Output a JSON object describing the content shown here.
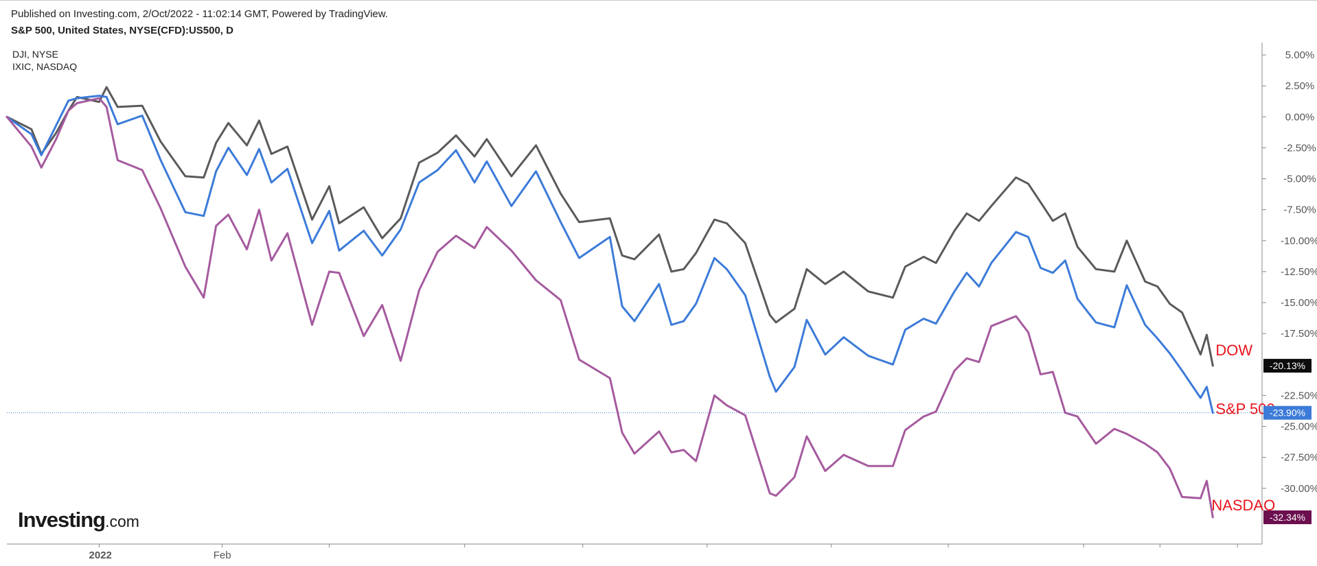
{
  "header": {
    "published": "Published on Investing.com, 2/Oct/2022 - 11:02:14 GMT, Powered by TradingView.",
    "symbol": "S&P 500, United States, NYSE(CFD):US500, D",
    "compare": [
      "DJI, NYSE",
      "IXIC, NASDAQ"
    ]
  },
  "logo": {
    "main": "Investing",
    "suffix": ".com"
  },
  "chart_data": {
    "type": "line",
    "y_unit": "%",
    "ylim": [
      -34.5,
      6.0
    ],
    "y_ticks": [
      5,
      2.5,
      0,
      -2.5,
      -5,
      -7.5,
      -10,
      -12.5,
      -15,
      -17.5,
      -22.5,
      -25,
      -27.5,
      -30
    ],
    "y_tick_labels": [
      "5.00%",
      "2.50%",
      "0.00%",
      "-2.50%",
      "-5.00%",
      "-7.50%",
      "-10.00%",
      "-12.50%",
      "-15.00%",
      "-17.50%",
      "-22.50%",
      "-25.00%",
      "-27.50%",
      "-30.00%"
    ],
    "x_labels": [
      {
        "label": "2022",
        "bold": true,
        "x": 0.076
      },
      {
        "label": "Feb",
        "bold": false,
        "x": 0.175
      }
    ],
    "x_range": [
      0,
      1.02
    ],
    "grid": false,
    "series": [
      {
        "name": "DOW",
        "color": "#5a5a5a",
        "label_color": "#e8141c",
        "last_value": "-20.13%",
        "badge_color": "#0c0c0c",
        "points": [
          [
            0,
            0
          ],
          [
            0.02,
            -1
          ],
          [
            0.028,
            -3
          ],
          [
            0.04,
            -1.3
          ],
          [
            0.05,
            0.5
          ],
          [
            0.057,
            1.6
          ],
          [
            0.075,
            1.2
          ],
          [
            0.081,
            2.4
          ],
          [
            0.09,
            0.8
          ],
          [
            0.11,
            0.9
          ],
          [
            0.125,
            -2
          ],
          [
            0.145,
            -4.8
          ],
          [
            0.16,
            -4.9
          ],
          [
            0.17,
            -2.1
          ],
          [
            0.18,
            -0.5
          ],
          [
            0.195,
            -2.3
          ],
          [
            0.205,
            -0.3
          ],
          [
            0.215,
            -3
          ],
          [
            0.228,
            -2.4
          ],
          [
            0.248,
            -8.3
          ],
          [
            0.262,
            -5.6
          ],
          [
            0.27,
            -8.6
          ],
          [
            0.29,
            -7.3
          ],
          [
            0.305,
            -9.8
          ],
          [
            0.32,
            -8.2
          ],
          [
            0.335,
            -3.7
          ],
          [
            0.35,
            -2.9
          ],
          [
            0.365,
            -1.5
          ],
          [
            0.38,
            -3.2
          ],
          [
            0.39,
            -1.8
          ],
          [
            0.41,
            -4.8
          ],
          [
            0.43,
            -2.3
          ],
          [
            0.45,
            -6.2
          ],
          [
            0.465,
            -8.5
          ],
          [
            0.49,
            -8.2
          ],
          [
            0.5,
            -11.2
          ],
          [
            0.51,
            -11.5
          ],
          [
            0.53,
            -9.5
          ],
          [
            0.54,
            -12.5
          ],
          [
            0.55,
            -12.3
          ],
          [
            0.56,
            -11
          ],
          [
            0.575,
            -8.3
          ],
          [
            0.585,
            -8.6
          ],
          [
            0.6,
            -10.2
          ],
          [
            0.62,
            -16
          ],
          [
            0.625,
            -16.6
          ],
          [
            0.64,
            -15.5
          ],
          [
            0.65,
            -12.3
          ],
          [
            0.665,
            -13.5
          ],
          [
            0.68,
            -12.5
          ],
          [
            0.7,
            -14.1
          ],
          [
            0.72,
            -14.6
          ],
          [
            0.73,
            -12.1
          ],
          [
            0.745,
            -11.3
          ],
          [
            0.755,
            -11.8
          ],
          [
            0.77,
            -9.2
          ],
          [
            0.78,
            -7.8
          ],
          [
            0.79,
            -8.4
          ],
          [
            0.8,
            -7.2
          ],
          [
            0.82,
            -4.9
          ],
          [
            0.83,
            -5.4
          ],
          [
            0.84,
            -6.9
          ],
          [
            0.85,
            -8.4
          ],
          [
            0.86,
            -7.8
          ],
          [
            0.87,
            -10.5
          ],
          [
            0.885,
            -12.3
          ],
          [
            0.9,
            -12.5
          ],
          [
            0.91,
            -10
          ],
          [
            0.925,
            -13.3
          ],
          [
            0.935,
            -13.7
          ],
          [
            0.945,
            -15.1
          ],
          [
            0.955,
            -15.8
          ],
          [
            0.97,
            -19.2
          ],
          [
            0.975,
            -17.6
          ],
          [
            0.98,
            -20.1
          ]
        ]
      },
      {
        "name": "S&P 500",
        "color": "#3c7bd8",
        "label_color": "#e8141c",
        "last_value": "-23.90%",
        "badge_color": "#3c7bd8",
        "points": [
          [
            0,
            0
          ],
          [
            0.02,
            -1.4
          ],
          [
            0.028,
            -3.1
          ],
          [
            0.04,
            -0.7
          ],
          [
            0.05,
            1.3
          ],
          [
            0.057,
            1.5
          ],
          [
            0.075,
            1.7
          ],
          [
            0.081,
            1.6
          ],
          [
            0.09,
            -0.6
          ],
          [
            0.11,
            0.1
          ],
          [
            0.125,
            -3.5
          ],
          [
            0.145,
            -7.7
          ],
          [
            0.16,
            -8
          ],
          [
            0.17,
            -4.4
          ],
          [
            0.18,
            -2.5
          ],
          [
            0.195,
            -4.7
          ],
          [
            0.205,
            -2.6
          ],
          [
            0.215,
            -5.3
          ],
          [
            0.228,
            -4.2
          ],
          [
            0.248,
            -10.2
          ],
          [
            0.262,
            -7.6
          ],
          [
            0.27,
            -10.8
          ],
          [
            0.29,
            -9.2
          ],
          [
            0.305,
            -11.2
          ],
          [
            0.32,
            -9.1
          ],
          [
            0.335,
            -5.3
          ],
          [
            0.35,
            -4.3
          ],
          [
            0.365,
            -2.7
          ],
          [
            0.38,
            -5.3
          ],
          [
            0.39,
            -3.6
          ],
          [
            0.41,
            -7.2
          ],
          [
            0.43,
            -4.4
          ],
          [
            0.45,
            -8.5
          ],
          [
            0.465,
            -11.4
          ],
          [
            0.49,
            -9.7
          ],
          [
            0.5,
            -15.3
          ],
          [
            0.51,
            -16.5
          ],
          [
            0.53,
            -13.5
          ],
          [
            0.54,
            -16.8
          ],
          [
            0.55,
            -16.5
          ],
          [
            0.56,
            -15.1
          ],
          [
            0.575,
            -11.4
          ],
          [
            0.585,
            -12.3
          ],
          [
            0.6,
            -14.4
          ],
          [
            0.62,
            -21
          ],
          [
            0.625,
            -22.2
          ],
          [
            0.64,
            -20.2
          ],
          [
            0.65,
            -16.4
          ],
          [
            0.665,
            -19.2
          ],
          [
            0.68,
            -17.8
          ],
          [
            0.7,
            -19.3
          ],
          [
            0.72,
            -20
          ],
          [
            0.73,
            -17.2
          ],
          [
            0.745,
            -16.3
          ],
          [
            0.755,
            -16.7
          ],
          [
            0.77,
            -14.1
          ],
          [
            0.78,
            -12.6
          ],
          [
            0.79,
            -13.7
          ],
          [
            0.8,
            -11.8
          ],
          [
            0.82,
            -9.3
          ],
          [
            0.83,
            -9.7
          ],
          [
            0.84,
            -12.2
          ],
          [
            0.85,
            -12.6
          ],
          [
            0.86,
            -11.6
          ],
          [
            0.87,
            -14.7
          ],
          [
            0.885,
            -16.6
          ],
          [
            0.9,
            -17
          ],
          [
            0.91,
            -13.6
          ],
          [
            0.925,
            -16.8
          ],
          [
            0.935,
            -17.9
          ],
          [
            0.945,
            -19.1
          ],
          [
            0.955,
            -20.5
          ],
          [
            0.97,
            -22.7
          ],
          [
            0.975,
            -21.8
          ],
          [
            0.98,
            -23.9
          ]
        ]
      },
      {
        "name": "NASDAQ",
        "color": "#a55a9e",
        "label_color": "#e8141c",
        "last_value": "-32.34%",
        "badge_color": "#6b0f4f",
        "points": [
          [
            0,
            0
          ],
          [
            0.02,
            -2.4
          ],
          [
            0.028,
            -4.1
          ],
          [
            0.04,
            -1.8
          ],
          [
            0.05,
            0.5
          ],
          [
            0.057,
            1.1
          ],
          [
            0.075,
            1.5
          ],
          [
            0.081,
            0.8
          ],
          [
            0.09,
            -3.5
          ],
          [
            0.11,
            -4.3
          ],
          [
            0.125,
            -7.4
          ],
          [
            0.145,
            -12.1
          ],
          [
            0.16,
            -14.6
          ],
          [
            0.17,
            -8.8
          ],
          [
            0.18,
            -7.9
          ],
          [
            0.195,
            -10.7
          ],
          [
            0.205,
            -7.5
          ],
          [
            0.215,
            -11.6
          ],
          [
            0.228,
            -9.4
          ],
          [
            0.248,
            -16.8
          ],
          [
            0.262,
            -12.5
          ],
          [
            0.27,
            -12.6
          ],
          [
            0.29,
            -17.7
          ],
          [
            0.305,
            -15.2
          ],
          [
            0.32,
            -19.7
          ],
          [
            0.335,
            -14
          ],
          [
            0.35,
            -10.9
          ],
          [
            0.365,
            -9.6
          ],
          [
            0.38,
            -10.6
          ],
          [
            0.39,
            -8.9
          ],
          [
            0.41,
            -10.8
          ],
          [
            0.43,
            -13.2
          ],
          [
            0.45,
            -14.8
          ],
          [
            0.465,
            -19.6
          ],
          [
            0.49,
            -21.1
          ],
          [
            0.5,
            -25.5
          ],
          [
            0.51,
            -27.2
          ],
          [
            0.53,
            -25.4
          ],
          [
            0.54,
            -27.1
          ],
          [
            0.55,
            -26.9
          ],
          [
            0.56,
            -27.8
          ],
          [
            0.575,
            -22.5
          ],
          [
            0.585,
            -23.3
          ],
          [
            0.6,
            -24.1
          ],
          [
            0.62,
            -30.4
          ],
          [
            0.625,
            -30.6
          ],
          [
            0.64,
            -29.1
          ],
          [
            0.65,
            -25.8
          ],
          [
            0.665,
            -28.6
          ],
          [
            0.68,
            -27.3
          ],
          [
            0.7,
            -28.2
          ],
          [
            0.72,
            -28.2
          ],
          [
            0.73,
            -25.3
          ],
          [
            0.745,
            -24.2
          ],
          [
            0.755,
            -23.8
          ],
          [
            0.77,
            -20.5
          ],
          [
            0.78,
            -19.5
          ],
          [
            0.79,
            -19.8
          ],
          [
            0.8,
            -16.9
          ],
          [
            0.82,
            -16.1
          ],
          [
            0.83,
            -17.4
          ],
          [
            0.84,
            -20.8
          ],
          [
            0.85,
            -20.6
          ],
          [
            0.86,
            -23.9
          ],
          [
            0.87,
            -24.2
          ],
          [
            0.885,
            -26.4
          ],
          [
            0.9,
            -25.2
          ],
          [
            0.91,
            -25.6
          ],
          [
            0.925,
            -26.4
          ],
          [
            0.935,
            -27.1
          ],
          [
            0.945,
            -28.4
          ],
          [
            0.955,
            -30.7
          ],
          [
            0.97,
            -30.8
          ],
          [
            0.975,
            -29.4
          ],
          [
            0.98,
            -32.34
          ]
        ]
      }
    ]
  }
}
